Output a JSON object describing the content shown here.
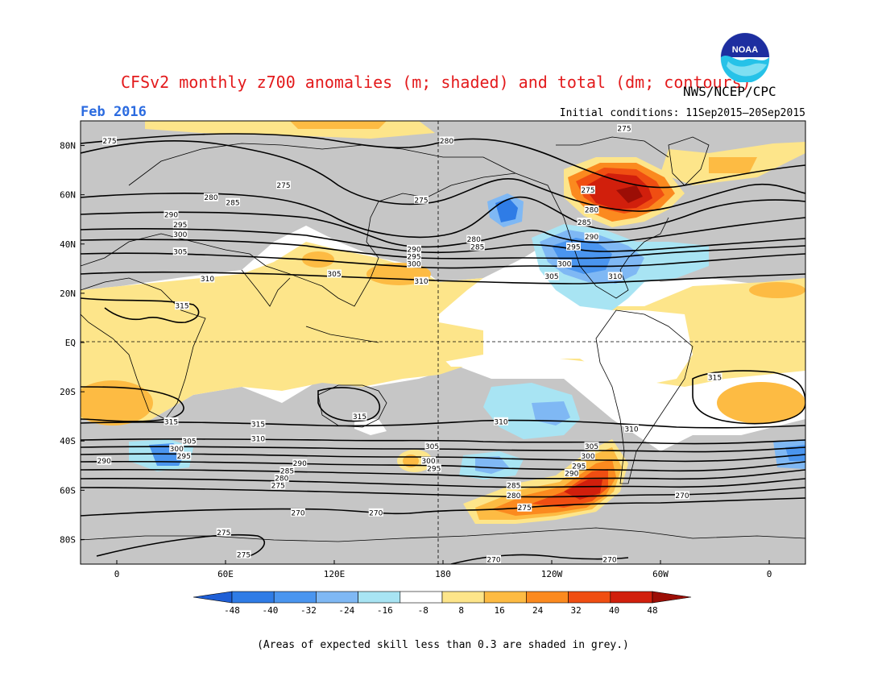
{
  "title": "CFSv2 monthly z700 anomalies (m; shaded) and total (dm; contours)",
  "organization": "NWS/NCEP/CPC",
  "logo_text": "NOAA",
  "valid_period": "Feb 2016",
  "initial_conditions": "Initial conditions: 11Sep2015—20Sep2015",
  "footnote": "(Areas of expected skill less than 0.3 are shaded in grey.)",
  "lat_ticks": [
    "80N",
    "60N",
    "40N",
    "20N",
    "EQ",
    "20S",
    "40S",
    "60S",
    "80S"
  ],
  "lon_ticks": [
    "0",
    "60E",
    "120E",
    "180",
    "120W",
    "60W",
    "0"
  ],
  "colorbar": {
    "labels": [
      "-48",
      "-40",
      "-32",
      "-24",
      "-16",
      "-8",
      "8",
      "16",
      "24",
      "32",
      "40",
      "48"
    ],
    "colors": [
      "#1f5fd6",
      "#2f7ce6",
      "#4a95ef",
      "#7fb8f4",
      "#a8e4f3",
      "#ffffff",
      "#fde58a",
      "#fdbb43",
      "#fb8a1f",
      "#f04e12",
      "#d11f0c",
      "#9c0e06"
    ]
  },
  "colors": {
    "skill_grey": "#c6c6c6",
    "title_red": "#e31a1c",
    "date_blue": "#2b6be0"
  },
  "contour_labels": [
    {
      "text": "275",
      "lon": -4,
      "lat": 82
    },
    {
      "text": "280",
      "lon": 182,
      "lat": 82
    },
    {
      "text": "275",
      "lon": 280,
      "lat": 87
    },
    {
      "text": "275",
      "lon": 92,
      "lat": 64
    },
    {
      "text": "275",
      "lon": 168,
      "lat": 58
    },
    {
      "text": "275",
      "lon": 260,
      "lat": 62
    },
    {
      "text": "280",
      "lon": 52,
      "lat": 59
    },
    {
      "text": "285",
      "lon": 64,
      "lat": 57
    },
    {
      "text": "280",
      "lon": 262,
      "lat": 54
    },
    {
      "text": "285",
      "lon": 258,
      "lat": 49
    },
    {
      "text": "290",
      "lon": 30,
      "lat": 52
    },
    {
      "text": "295",
      "lon": 35,
      "lat": 48
    },
    {
      "text": "300",
      "lon": 35,
      "lat": 44
    },
    {
      "text": "305",
      "lon": 35,
      "lat": 37
    },
    {
      "text": "280",
      "lon": 197,
      "lat": 42
    },
    {
      "text": "285",
      "lon": 199,
      "lat": 39
    },
    {
      "text": "290",
      "lon": 164,
      "lat": 38
    },
    {
      "text": "295",
      "lon": 164,
      "lat": 35
    },
    {
      "text": "300",
      "lon": 164,
      "lat": 32
    },
    {
      "text": "290",
      "lon": 262,
      "lat": 43
    },
    {
      "text": "295",
      "lon": 252,
      "lat": 39
    },
    {
      "text": "300",
      "lon": 247,
      "lat": 32
    },
    {
      "text": "305",
      "lon": 120,
      "lat": 28
    },
    {
      "text": "310",
      "lon": 50,
      "lat": 26
    },
    {
      "text": "310",
      "lon": 168,
      "lat": 25
    },
    {
      "text": "305",
      "lon": 240,
      "lat": 27
    },
    {
      "text": "310",
      "lon": 275,
      "lat": 27
    },
    {
      "text": "315",
      "lon": 36,
      "lat": 15
    },
    {
      "text": "315",
      "lon": 330,
      "lat": -14
    },
    {
      "text": "315",
      "lon": 30,
      "lat": -32
    },
    {
      "text": "315",
      "lon": 78,
      "lat": -33
    },
    {
      "text": "315",
      "lon": 134,
      "lat": -30
    },
    {
      "text": "310",
      "lon": 212,
      "lat": -32
    },
    {
      "text": "310",
      "lon": 78,
      "lat": -39
    },
    {
      "text": "310",
      "lon": 284,
      "lat": -35
    },
    {
      "text": "305",
      "lon": 40,
      "lat": -40
    },
    {
      "text": "300",
      "lon": 33,
      "lat": -43
    },
    {
      "text": "295",
      "lon": 37,
      "lat": -46
    },
    {
      "text": "290",
      "lon": -7,
      "lat": -48
    },
    {
      "text": "305",
      "lon": 174,
      "lat": -42
    },
    {
      "text": "300",
      "lon": 172,
      "lat": -48
    },
    {
      "text": "295",
      "lon": 175,
      "lat": -51
    },
    {
      "text": "290",
      "lon": 101,
      "lat": -49
    },
    {
      "text": "285",
      "lon": 94,
      "lat": -52
    },
    {
      "text": "280",
      "lon": 91,
      "lat": -55
    },
    {
      "text": "275",
      "lon": 89,
      "lat": -58
    },
    {
      "text": "305",
      "lon": 262,
      "lat": -42
    },
    {
      "text": "300",
      "lon": 260,
      "lat": -46
    },
    {
      "text": "295",
      "lon": 255,
      "lat": -50
    },
    {
      "text": "290",
      "lon": 251,
      "lat": -53
    },
    {
      "text": "285",
      "lon": 219,
      "lat": -58
    },
    {
      "text": "280",
      "lon": 219,
      "lat": -62
    },
    {
      "text": "275",
      "lon": 225,
      "lat": -67
    },
    {
      "text": "270",
      "lon": 100,
      "lat": -69
    },
    {
      "text": "270",
      "lon": 143,
      "lat": -69
    },
    {
      "text": "270",
      "lon": 312,
      "lat": -62
    },
    {
      "text": "275",
      "lon": 59,
      "lat": -77
    },
    {
      "text": "275",
      "lon": 70,
      "lat": -86
    },
    {
      "text": "270",
      "lon": 208,
      "lat": -88
    },
    {
      "text": "270",
      "lon": 272,
      "lat": -88
    }
  ]
}
